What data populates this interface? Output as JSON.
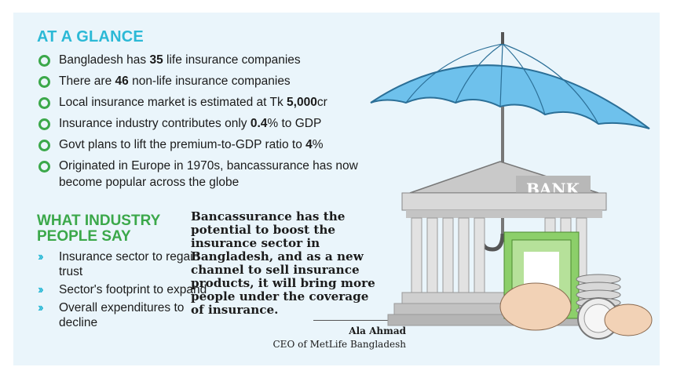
{
  "at_a_glance": {
    "heading": "AT A GLANCE",
    "items": [
      {
        "pre": "Bangladesh has ",
        "bold": "35",
        "post": " life insurance companies"
      },
      {
        "pre": "There are ",
        "bold": "46",
        "post": " non-life insurance companies"
      },
      {
        "pre": "Local insurance market is estimated at Tk ",
        "bold": "5,000",
        "post": "cr"
      },
      {
        "pre": "Insurance industry contributes only ",
        "bold": "0.4",
        "post": "% to GDP"
      },
      {
        "pre": "Govt plans to lift the premium-to-GDP ratio to ",
        "bold": "4",
        "post": "%"
      },
      {
        "pre": "Originated in Europe in 1970s, bancassurance has now become popular across the globe",
        "bold": "",
        "post": ""
      }
    ]
  },
  "industry": {
    "heading": "WHAT INDUSTRY PEOPLE SAY",
    "items": [
      "Insurance sector to regain trust",
      "Sector's footprint to expand",
      "Overall expenditures to decline"
    ]
  },
  "quote": {
    "text": "Bancassurance has the potential to boost the insurance sector in Bangladesh, and as a new channel to sell insurance products, it will bring more people under the coverage of insurance.",
    "author": "Ala Ahmad",
    "role": "CEO of MetLife Bangladesh"
  },
  "illustration": {
    "sign": "BANK"
  },
  "colors": {
    "heading_blue": "#2bb9d6",
    "heading_green": "#3ba84a",
    "background": "#eaf5fb",
    "umbrella": "#6ec1ec"
  }
}
